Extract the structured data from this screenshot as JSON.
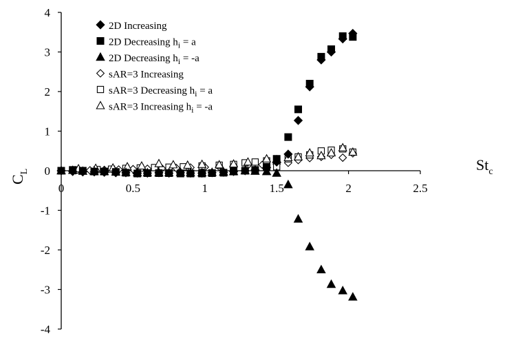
{
  "chart_data": {
    "type": "scatter",
    "title": "",
    "xlabel": {
      "main": "St",
      "sub": "c"
    },
    "ylabel": {
      "main": "C",
      "sub": "L"
    },
    "xlim": [
      0,
      2.5
    ],
    "ylim": [
      -4,
      4
    ],
    "xticks": [
      0,
      0.5,
      1,
      1.5,
      2,
      2.5
    ],
    "yticks": [
      -4,
      -3,
      -2,
      -1,
      0,
      1,
      2,
      3,
      4
    ],
    "xtick_labels": [
      "0",
      "0.5",
      "1",
      "1.5",
      "2",
      "2.5"
    ],
    "ytick_labels": [
      "-4",
      "-3",
      "-2",
      "-1",
      "0",
      "1",
      "2",
      "3",
      "4"
    ],
    "grid": false,
    "legend_position": "top-left",
    "series": [
      {
        "name": "2D Increasing",
        "legend": {
          "text": "2D Increasing",
          "sub": "",
          "suffix": ""
        },
        "marker": "diamond",
        "filled": true,
        "color": "#000000",
        "points": [
          [
            0.0,
            0.0
          ],
          [
            0.08,
            -0.02
          ],
          [
            0.15,
            -0.03
          ],
          [
            0.23,
            -0.03
          ],
          [
            0.3,
            -0.04
          ],
          [
            0.38,
            -0.05
          ],
          [
            0.45,
            -0.05
          ],
          [
            0.53,
            -0.06
          ],
          [
            0.6,
            -0.06
          ],
          [
            0.68,
            -0.05
          ],
          [
            0.75,
            -0.06
          ],
          [
            0.83,
            -0.05
          ],
          [
            0.9,
            -0.06
          ],
          [
            0.98,
            -0.06
          ],
          [
            1.05,
            -0.05
          ],
          [
            1.13,
            -0.04
          ],
          [
            1.2,
            -0.02
          ],
          [
            1.28,
            0.0
          ],
          [
            1.35,
            0.02
          ],
          [
            1.43,
            0.08
          ],
          [
            1.5,
            0.22
          ],
          [
            1.58,
            0.42
          ],
          [
            1.65,
            1.27
          ],
          [
            1.73,
            2.12
          ],
          [
            1.81,
            2.8
          ],
          [
            1.88,
            3.0
          ],
          [
            1.96,
            3.33
          ],
          [
            2.03,
            3.47
          ]
        ]
      },
      {
        "name": "2D Decreasing hi = a",
        "legend": {
          "text": "2D Decreasing h",
          "sub": "i",
          "suffix": " = a"
        },
        "marker": "square",
        "filled": true,
        "color": "#000000",
        "points": [
          [
            0.0,
            0.0
          ],
          [
            0.08,
            0.02
          ],
          [
            0.15,
            0.0
          ],
          [
            0.23,
            -0.02
          ],
          [
            0.3,
            -0.02
          ],
          [
            0.38,
            -0.03
          ],
          [
            0.45,
            -0.05
          ],
          [
            0.53,
            -0.07
          ],
          [
            0.6,
            -0.06
          ],
          [
            0.68,
            -0.06
          ],
          [
            0.75,
            -0.06
          ],
          [
            0.83,
            -0.07
          ],
          [
            0.9,
            -0.07
          ],
          [
            0.98,
            -0.07
          ],
          [
            1.05,
            -0.06
          ],
          [
            1.13,
            -0.05
          ],
          [
            1.2,
            -0.02
          ],
          [
            1.28,
            0.0
          ],
          [
            1.35,
            0.02
          ],
          [
            1.43,
            0.1
          ],
          [
            1.5,
            0.3
          ],
          [
            1.58,
            0.85
          ],
          [
            1.65,
            1.55
          ],
          [
            1.73,
            2.2
          ],
          [
            1.81,
            2.88
          ],
          [
            1.88,
            3.07
          ],
          [
            1.96,
            3.4
          ],
          [
            2.03,
            3.38
          ]
        ]
      },
      {
        "name": "2D Decreasing hi = -a",
        "legend": {
          "text": "2D Decreasing h",
          "sub": "i",
          "suffix": " = -a"
        },
        "marker": "triangle",
        "filled": true,
        "color": "#000000",
        "points": [
          [
            0.0,
            0.0
          ],
          [
            0.08,
            0.01
          ],
          [
            0.15,
            -0.01
          ],
          [
            0.23,
            -0.02
          ],
          [
            0.3,
            -0.02
          ],
          [
            0.38,
            -0.03
          ],
          [
            0.45,
            -0.04
          ],
          [
            0.53,
            -0.05
          ],
          [
            0.6,
            -0.05
          ],
          [
            0.68,
            -0.05
          ],
          [
            0.75,
            -0.05
          ],
          [
            0.83,
            -0.04
          ],
          [
            0.9,
            -0.05
          ],
          [
            0.98,
            -0.05
          ],
          [
            1.05,
            -0.04
          ],
          [
            1.13,
            -0.03
          ],
          [
            1.2,
            -0.02
          ],
          [
            1.28,
            0.0
          ],
          [
            1.35,
            -0.01
          ],
          [
            1.43,
            -0.02
          ],
          [
            1.5,
            -0.06
          ],
          [
            1.58,
            -0.35
          ],
          [
            1.65,
            -1.22
          ],
          [
            1.73,
            -1.92
          ],
          [
            1.81,
            -2.5
          ],
          [
            1.88,
            -2.87
          ],
          [
            1.96,
            -3.03
          ],
          [
            2.03,
            -3.19
          ]
        ]
      },
      {
        "name": "sAR=3 Increasing",
        "legend": {
          "text": "sAR=3 Increasing",
          "sub": "",
          "suffix": ""
        },
        "marker": "diamond",
        "filled": false,
        "color": "#000000",
        "points": [
          [
            0.0,
            0.0
          ],
          [
            0.1,
            0.01
          ],
          [
            0.2,
            0.01
          ],
          [
            0.3,
            0.02
          ],
          [
            0.4,
            0.03
          ],
          [
            0.5,
            0.04
          ],
          [
            0.6,
            0.05
          ],
          [
            0.7,
            0.06
          ],
          [
            0.8,
            0.07
          ],
          [
            0.9,
            0.08
          ],
          [
            1.0,
            0.09
          ],
          [
            1.1,
            0.1
          ],
          [
            1.2,
            0.12
          ],
          [
            1.3,
            0.14
          ],
          [
            1.4,
            0.15
          ],
          [
            1.5,
            0.17
          ],
          [
            1.58,
            0.2
          ],
          [
            1.65,
            0.27
          ],
          [
            1.73,
            0.32
          ],
          [
            1.81,
            0.35
          ],
          [
            1.88,
            0.4
          ],
          [
            1.96,
            0.33
          ],
          [
            2.03,
            0.44
          ]
        ]
      },
      {
        "name": "sAR=3 Decreasing hi = a",
        "legend": {
          "text": "sAR=3 Decreasing h",
          "sub": "i",
          "suffix": " = a"
        },
        "marker": "square",
        "filled": false,
        "color": "#000000",
        "points": [
          [
            0.0,
            0.0
          ],
          [
            0.1,
            0.02
          ],
          [
            0.25,
            0.03
          ],
          [
            0.35,
            0.04
          ],
          [
            0.45,
            0.06
          ],
          [
            0.55,
            0.07
          ],
          [
            0.65,
            0.08
          ],
          [
            0.75,
            0.09
          ],
          [
            0.85,
            0.1
          ],
          [
            0.98,
            0.12
          ],
          [
            1.1,
            0.14
          ],
          [
            1.2,
            0.16
          ],
          [
            1.28,
            0.2
          ],
          [
            1.35,
            0.22
          ],
          [
            1.43,
            0.25
          ],
          [
            1.5,
            0.1
          ],
          [
            1.58,
            0.3
          ],
          [
            1.65,
            0.35
          ],
          [
            1.73,
            0.4
          ],
          [
            1.81,
            0.5
          ],
          [
            1.88,
            0.52
          ],
          [
            1.96,
            0.55
          ],
          [
            2.03,
            0.47
          ]
        ]
      },
      {
        "name": "sAR=3 Increasing hi = -a",
        "legend": {
          "text": "sAR=3 Increasing h",
          "sub": "i",
          "suffix": " = -a"
        },
        "marker": "triangle",
        "filled": false,
        "color": "#000000",
        "points": [
          [
            0.0,
            0.0
          ],
          [
            0.12,
            0.05
          ],
          [
            0.24,
            0.06
          ],
          [
            0.36,
            0.07
          ],
          [
            0.46,
            0.1
          ],
          [
            0.56,
            0.12
          ],
          [
            0.68,
            0.18
          ],
          [
            0.78,
            0.15
          ],
          [
            0.88,
            0.14
          ],
          [
            0.98,
            0.16
          ],
          [
            1.1,
            0.15
          ],
          [
            1.2,
            0.17
          ],
          [
            1.3,
            0.22
          ],
          [
            1.43,
            0.3
          ],
          [
            1.5,
            0.28
          ],
          [
            1.58,
            0.33
          ],
          [
            1.65,
            0.35
          ],
          [
            1.73,
            0.45
          ],
          [
            1.81,
            0.38
          ],
          [
            1.88,
            0.45
          ],
          [
            1.96,
            0.58
          ],
          [
            2.03,
            0.47
          ]
        ]
      }
    ]
  }
}
